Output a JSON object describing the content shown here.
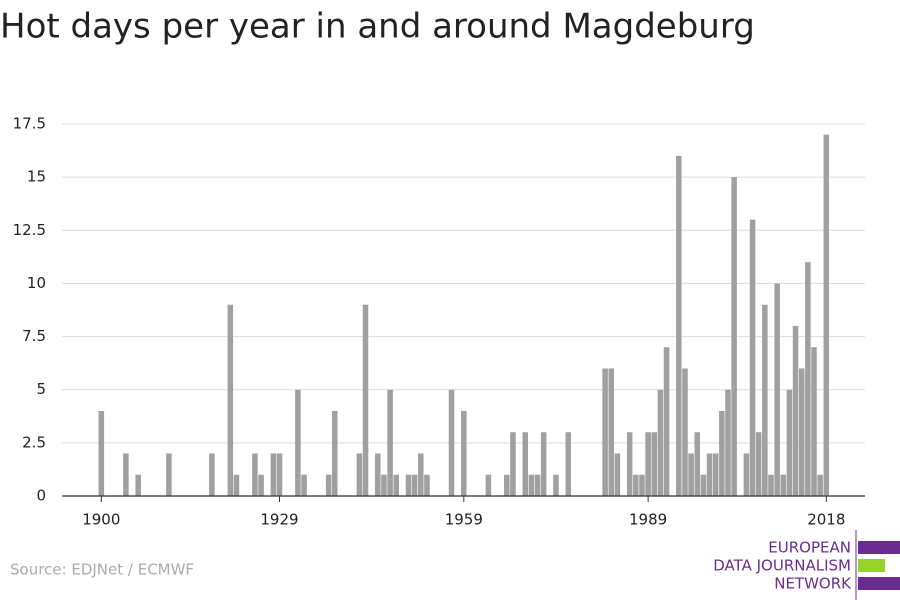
{
  "chart_data": {
    "type": "bar",
    "title": "Hot days per year in and around Magdeburg",
    "source": "Source: EDJNet / ECMWF",
    "logo": [
      "EUROPEAN",
      "DATA JOURNALISM",
      "NETWORK"
    ],
    "color": "#a0a0a0",
    "x": [
      1900,
      1904,
      1906,
      1911,
      1918,
      1921,
      1922,
      1925,
      1926,
      1928,
      1929,
      1932,
      1933,
      1937,
      1938,
      1942,
      1943,
      1945,
      1946,
      1947,
      1948,
      1950,
      1951,
      1952,
      1953,
      1957,
      1959,
      1963,
      1966,
      1967,
      1969,
      1970,
      1971,
      1972,
      1974,
      1976,
      1982,
      1983,
      1984,
      1986,
      1987,
      1988,
      1989,
      1990,
      1991,
      1992,
      1994,
      1995,
      1996,
      1997,
      1998,
      1999,
      2000,
      2001,
      2002,
      2003,
      2005,
      2006,
      2007,
      2008,
      2009,
      2010,
      2011,
      2012,
      2013,
      2014,
      2015,
      2016,
      2017,
      2018
    ],
    "values": [
      4,
      2,
      1,
      2,
      2,
      9,
      1,
      2,
      1,
      2,
      2,
      5,
      1,
      1,
      4,
      2,
      9,
      2,
      1,
      5,
      1,
      1,
      1,
      2,
      1,
      5,
      4,
      1,
      1,
      3,
      3,
      1,
      1,
      3,
      1,
      3,
      6,
      6,
      2,
      3,
      1,
      1,
      3,
      3,
      5,
      7,
      16,
      6,
      2,
      3,
      1,
      2,
      2,
      4,
      5,
      15,
      2,
      13,
      3,
      9,
      1,
      10,
      1,
      5,
      8,
      6,
      11,
      7,
      1,
      17
    ],
    "xlim": [
      1893.6,
      2024.3
    ],
    "xticks": [
      1900,
      1929,
      1959,
      1989,
      2018
    ],
    "ylim": [
      0,
      17.5
    ],
    "yticks": [
      0,
      2.5,
      5,
      7.5,
      10,
      12.5,
      15,
      17.5
    ],
    "grid": true
  }
}
